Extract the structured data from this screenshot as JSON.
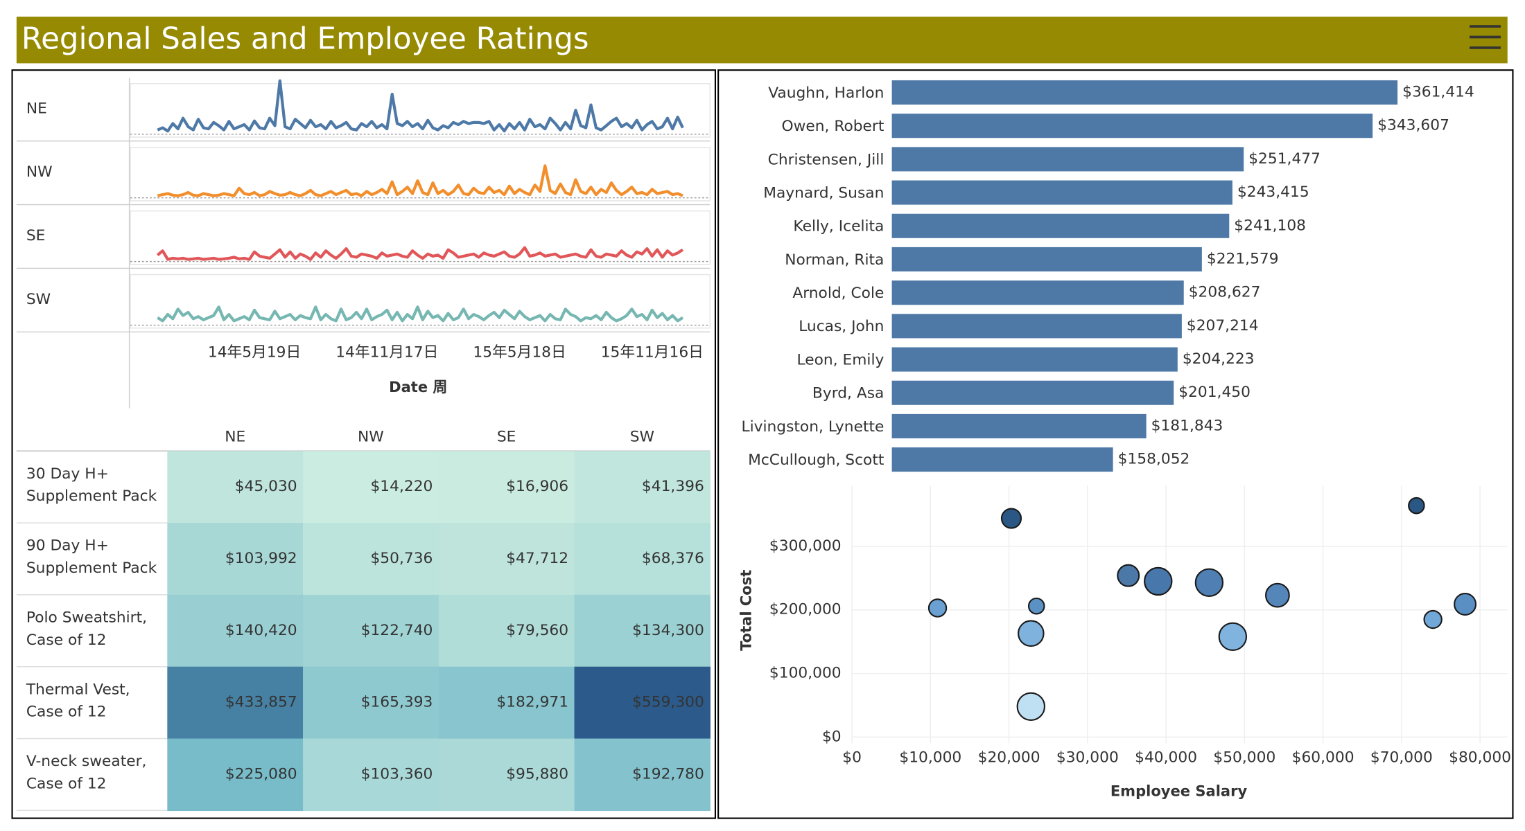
{
  "header": {
    "title": "Regional Sales and Employee Ratings"
  },
  "chart_data": [
    {
      "type": "line",
      "x": [
        "2014-01-06",
        "2014-01-13",
        "2014-01-20",
        "2014-01-27",
        "2014-02-03",
        "2014-02-10",
        "2014-02-17",
        "2014-02-24",
        "2014-03-03",
        "2014-03-10",
        "2014-03-17",
        "2014-03-24",
        "2014-03-31",
        "2014-04-07",
        "2014-04-14",
        "2014-04-21",
        "2014-04-28",
        "2014-05-05",
        "2014-05-12",
        "2014-05-19",
        "2014-05-26",
        "2014-06-02",
        "2014-06-09",
        "2014-06-16",
        "2014-06-23",
        "2014-06-30",
        "2014-07-07",
        "2014-07-14",
        "2014-07-21",
        "2014-07-28",
        "2014-08-04",
        "2014-08-11",
        "2014-08-18",
        "2014-08-25",
        "2014-09-01",
        "2014-09-08",
        "2014-09-15",
        "2014-09-22",
        "2014-09-29",
        "2014-10-06",
        "2014-10-13",
        "2014-10-20",
        "2014-10-27",
        "2014-11-03",
        "2014-11-10",
        "2014-11-17",
        "2014-11-24",
        "2014-12-01",
        "2014-12-08",
        "2014-12-15",
        "2014-12-22",
        "2014-12-29",
        "2015-01-05",
        "2015-01-12",
        "2015-01-19",
        "2015-01-26",
        "2015-02-02",
        "2015-02-09",
        "2015-02-16",
        "2015-02-23",
        "2015-03-02",
        "2015-03-09",
        "2015-03-16",
        "2015-03-23",
        "2015-03-30",
        "2015-04-06",
        "2015-04-13",
        "2015-04-20",
        "2015-04-27",
        "2015-05-04",
        "2015-05-11",
        "2015-05-18",
        "2015-05-25",
        "2015-06-01",
        "2015-06-08",
        "2015-06-15",
        "2015-06-22",
        "2015-06-29",
        "2015-07-06",
        "2015-07-13",
        "2015-07-20",
        "2015-07-27",
        "2015-08-03",
        "2015-08-10",
        "2015-08-17",
        "2015-08-24",
        "2015-08-31",
        "2015-09-07",
        "2015-09-14",
        "2015-09-21",
        "2015-09-28",
        "2015-10-05",
        "2015-10-12",
        "2015-10-19",
        "2015-10-26",
        "2015-11-02",
        "2015-11-09",
        "2015-11-16",
        "2015-11-23",
        "2015-11-30",
        "2015-12-07",
        "2015-12-14",
        "2015-12-21",
        "2015-12-28"
      ],
      "xlim": [
        "2014-01-06",
        "2015-12-28"
      ],
      "xticks": [
        {
          "value": "2014-05-19",
          "label": "14年5月19日"
        },
        {
          "value": "2014-11-17",
          "label": "14年11月17日"
        },
        {
          "value": "2015-05-18",
          "label": "15年5月18日"
        },
        {
          "value": "2015-11-16",
          "label": "15年11月16日"
        }
      ],
      "xlabel": "Date 周",
      "ylim": [
        0,
        100
      ],
      "series": [
        {
          "name": "NE",
          "color": "#4e79a7",
          "values": [
            8,
            12,
            6,
            20,
            10,
            30,
            14,
            8,
            28,
            12,
            10,
            22,
            16,
            8,
            24,
            10,
            14,
            18,
            8,
            25,
            12,
            10,
            30,
            16,
            100,
            14,
            10,
            28,
            20,
            12,
            26,
            14,
            18,
            10,
            24,
            12,
            16,
            22,
            10,
            8,
            20,
            14,
            24,
            12,
            18,
            10,
            75,
            20,
            16,
            24,
            14,
            20,
            10,
            26,
            12,
            8,
            16,
            12,
            22,
            18,
            24,
            20,
            22,
            22,
            20,
            24,
            8,
            18,
            6,
            20,
            10,
            22,
            8,
            28,
            14,
            18,
            10,
            30,
            20,
            8,
            22,
            10,
            45,
            16,
            12,
            55,
            12,
            8,
            16,
            24,
            30,
            14,
            20,
            12,
            26,
            8,
            18,
            24,
            10,
            14,
            30,
            10,
            32,
            12
          ]
        },
        {
          "name": "NW",
          "color": "#f28e2b",
          "values": [
            4,
            6,
            8,
            5,
            4,
            6,
            10,
            5,
            4,
            8,
            6,
            4,
            5,
            8,
            6,
            4,
            18,
            8,
            6,
            10,
            4,
            6,
            12,
            8,
            5,
            6,
            10,
            6,
            4,
            8,
            14,
            6,
            4,
            8,
            12,
            6,
            10,
            14,
            6,
            8,
            4,
            12,
            6,
            10,
            16,
            8,
            30,
            6,
            12,
            20,
            8,
            32,
            10,
            6,
            28,
            8,
            14,
            6,
            12,
            24,
            8,
            6,
            18,
            10,
            8,
            20,
            10,
            14,
            6,
            22,
            8,
            16,
            10,
            6,
            24,
            12,
            60,
            14,
            8,
            26,
            10,
            6,
            34,
            12,
            8,
            20,
            6,
            16,
            10,
            28,
            14,
            6,
            12,
            20,
            8,
            10,
            6,
            16,
            8,
            10,
            12,
            6,
            8,
            4
          ]
        },
        {
          "name": "SE",
          "color": "#e15759",
          "values": [
            12,
            20,
            4,
            6,
            5,
            6,
            4,
            5,
            6,
            4,
            5,
            6,
            4,
            5,
            6,
            8,
            5,
            6,
            4,
            18,
            10,
            8,
            6,
            14,
            22,
            8,
            18,
            6,
            14,
            10,
            4,
            16,
            8,
            20,
            12,
            6,
            14,
            24,
            10,
            8,
            14,
            12,
            10,
            6,
            16,
            10,
            12,
            14,
            10,
            8,
            20,
            12,
            6,
            14,
            10,
            12,
            6,
            22,
            16,
            8,
            10,
            12,
            14,
            8,
            16,
            12,
            10,
            14,
            18,
            10,
            8,
            14,
            26,
            10,
            12,
            16,
            10,
            12,
            14,
            8,
            10,
            12,
            14,
            10,
            8,
            22,
            10,
            8,
            14,
            12,
            10,
            20,
            12,
            8,
            18,
            14,
            24,
            10,
            22,
            8,
            20,
            12,
            16,
            22
          ]
        },
        {
          "name": "SW",
          "color": "#76b7b2",
          "values": [
            14,
            8,
            20,
            12,
            30,
            18,
            24,
            12,
            16,
            10,
            14,
            18,
            34,
            10,
            20,
            8,
            12,
            16,
            10,
            28,
            14,
            12,
            10,
            26,
            12,
            16,
            20,
            10,
            18,
            14,
            12,
            34,
            10,
            20,
            12,
            8,
            30,
            10,
            14,
            24,
            12,
            30,
            10,
            16,
            20,
            28,
            10,
            24,
            8,
            20,
            12,
            34,
            10,
            26,
            14,
            18,
            8,
            22,
            10,
            14,
            30,
            12,
            20,
            16,
            10,
            18,
            24,
            14,
            28,
            20,
            12,
            26,
            16,
            10,
            14,
            18,
            8,
            20,
            12,
            10,
            30,
            20,
            16,
            8,
            14,
            12,
            18,
            10,
            24,
            14,
            8,
            12,
            18,
            30,
            16,
            20,
            10,
            28,
            14,
            22,
            10,
            18,
            8,
            14
          ]
        }
      ]
    },
    {
      "type": "heatmap",
      "columns": [
        "NE",
        "NW",
        "SE",
        "SW"
      ],
      "rows": [
        [
          "30 Day H+",
          "Supplement Pack"
        ],
        [
          "90 Day H+",
          "Supplement Pack"
        ],
        [
          "Polo Sweatshirt,",
          "Case of 12"
        ],
        [
          "Thermal Vest,",
          "Case of 12"
        ],
        [
          "V-neck sweater,",
          "Case of 12"
        ]
      ],
      "values": [
        [
          45030,
          14220,
          16906,
          41396
        ],
        [
          103992,
          50736,
          47712,
          68376
        ],
        [
          140420,
          122740,
          79560,
          134300
        ],
        [
          433857,
          165393,
          182971,
          559300
        ],
        [
          225080,
          103360,
          95880,
          192780
        ]
      ],
      "value_labels": [
        [
          "$45,030",
          "$14,220",
          "$16,906",
          "$41,396"
        ],
        [
          "$103,992",
          "$50,736",
          "$47,712",
          "$68,376"
        ],
        [
          "$140,420",
          "$122,740",
          "$79,560",
          "$134,300"
        ],
        [
          "$433,857",
          "$165,393",
          "$182,971",
          "$559,300"
        ],
        [
          "$225,080",
          "$103,360",
          "$95,880",
          "$192,780"
        ]
      ],
      "colors": [
        "#cbece0",
        "#6ab4c6",
        "#2c5a8a"
      ]
    },
    {
      "type": "bar",
      "orientation": "horizontal",
      "categories": [
        "Vaughn, Harlon",
        "Owen, Robert",
        "Christensen, Jill",
        "Maynard, Susan",
        "Kelly, Icelita",
        "Norman, Rita",
        "Arnold, Cole",
        "Lucas, John",
        "Leon, Emily",
        "Byrd, Asa",
        "Livingston, Lynette",
        "McCullough, Scott"
      ],
      "values": [
        361414,
        343607,
        251477,
        243415,
        241108,
        221579,
        208627,
        207214,
        204223,
        201450,
        181843,
        158052
      ],
      "value_labels": [
        "$361,414",
        "$343,607",
        "$251,477",
        "$243,415",
        "$241,108",
        "$221,579",
        "$208,627",
        "$207,214",
        "$204,223",
        "$201,450",
        "$181,843",
        "$158,052"
      ],
      "color": "#4e79a7",
      "xlim": [
        0,
        440000
      ]
    },
    {
      "type": "scatter",
      "x": [
        20300,
        71900,
        35200,
        39000,
        45500,
        54200,
        10900,
        23500,
        78100,
        74000,
        22800,
        48500,
        22800
      ],
      "values": [
        344000,
        364000,
        254000,
        245000,
        243000,
        223000,
        203000,
        206000,
        209000,
        185000,
        163000,
        158000,
        48000
      ],
      "sizes": [
        10,
        8,
        11,
        14,
        14,
        12,
        9,
        8,
        11,
        9,
        13,
        14,
        14
      ],
      "colors": [
        "#2a5783",
        "#2a5783",
        "#4c78a8",
        "#4878ab",
        "#4f7fb3",
        "#5586ba",
        "#6aa1d2",
        "#5b92c6",
        "#5a8fc3",
        "#72a8d8",
        "#7fb3de",
        "#80b3de",
        "#bfe0f2"
      ],
      "xlim": [
        0,
        83500
      ],
      "ylim": [
        -10000,
        395000
      ],
      "xticks": [
        {
          "value": 0,
          "label": "$0"
        },
        {
          "value": 10000,
          "label": "$10,000"
        },
        {
          "value": 20000,
          "label": "$20,000"
        },
        {
          "value": 30000,
          "label": "$30,000"
        },
        {
          "value": 40000,
          "label": "$40,000"
        },
        {
          "value": 50000,
          "label": "$50,000"
        },
        {
          "value": 60000,
          "label": "$60,000"
        },
        {
          "value": 70000,
          "label": "$70,000"
        },
        {
          "value": 80000,
          "label": "$80,000"
        }
      ],
      "yticks": [
        {
          "value": 0,
          "label": "$0"
        },
        {
          "value": 100000,
          "label": "$100,000"
        },
        {
          "value": 200000,
          "label": "$200,000"
        },
        {
          "value": 300000,
          "label": "$300,000"
        }
      ],
      "xlabel": "Employee Salary",
      "ylabel": "Total Cost",
      "grid": true
    }
  ]
}
